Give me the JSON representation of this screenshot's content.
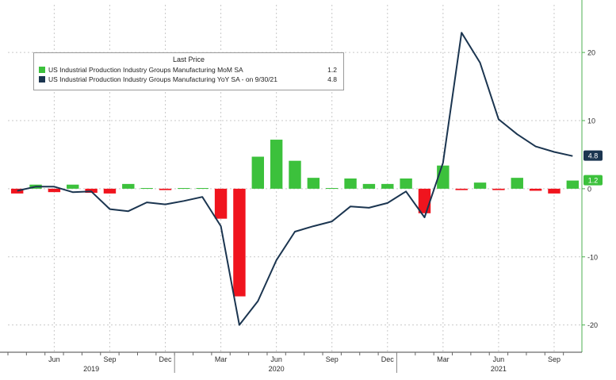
{
  "colors": {
    "pos_bar": "#3cc13c",
    "neg_bar": "#f0141e",
    "line": "#1b3550",
    "grid": "#c9c9c9",
    "axis": "#4caf50"
  },
  "legend": {
    "title": "Last Price",
    "items": [
      {
        "name": "US Industrial Production Industry Groups Manufacturing MoM SA",
        "value": "1.2",
        "color": "#3cc13c"
      },
      {
        "name": "US Industrial Production Industry Groups Manufacturing YoY SA -  on 9/30/21",
        "value": "4.8",
        "color": "#1b3550"
      }
    ]
  },
  "chart_data": {
    "type": "bar",
    "months": [
      "2019-04",
      "2019-05",
      "2019-06",
      "2019-07",
      "2019-08",
      "2019-09",
      "2019-10",
      "2019-11",
      "2019-12",
      "2020-01",
      "2020-02",
      "2020-03",
      "2020-04",
      "2020-05",
      "2020-06",
      "2020-07",
      "2020-08",
      "2020-09",
      "2020-10",
      "2020-11",
      "2020-12",
      "2021-01",
      "2021-02",
      "2021-03",
      "2021-04",
      "2021-05",
      "2021-06",
      "2021-07",
      "2021-08",
      "2021-09",
      "2021-10"
    ],
    "x_tick_labels": [
      {
        "label": "Jun",
        "month": "2019-06"
      },
      {
        "label": "Sep",
        "month": "2019-09"
      },
      {
        "label": "Dec",
        "month": "2019-12"
      },
      {
        "label": "Mar",
        "month": "2020-03"
      },
      {
        "label": "Jun",
        "month": "2020-06"
      },
      {
        "label": "Sep",
        "month": "2020-09"
      },
      {
        "label": "Dec",
        "month": "2020-12"
      },
      {
        "label": "Mar",
        "month": "2021-03"
      },
      {
        "label": "Jun",
        "month": "2021-06"
      },
      {
        "label": "Sep",
        "month": "2021-09"
      }
    ],
    "year_labels": [
      {
        "label": "2019",
        "month": "2019-08"
      },
      {
        "label": "2020",
        "month": "2020-06"
      },
      {
        "label": "2021",
        "month": "2021-06"
      }
    ],
    "y_ticks": [
      -20,
      -10,
      0,
      10,
      20
    ],
    "ylim": [
      -24,
      27
    ],
    "grid": true,
    "series": [
      {
        "name": "US Industrial Production Industry Groups Manufacturing MoM SA",
        "type": "bar",
        "values": [
          -0.7,
          0.6,
          -0.5,
          0.6,
          -0.6,
          -0.7,
          0.7,
          0.1,
          -0.2,
          0.1,
          0.1,
          -4.4,
          -15.8,
          4.7,
          7.2,
          4.1,
          1.6,
          0.1,
          1.5,
          0.7,
          0.7,
          1.5,
          -3.6,
          3.4,
          -0.2,
          0.9,
          -0.2,
          1.6,
          -0.3,
          -0.7,
          1.2
        ]
      },
      {
        "name": "US Industrial Production Industry Groups Manufacturing YoY SA -  on 9/30/21",
        "type": "line",
        "values": [
          -0.3,
          0.3,
          0.3,
          -0.5,
          -0.4,
          -3.0,
          -3.3,
          -2.0,
          -2.3,
          -1.8,
          -1.2,
          -5.5,
          -20.0,
          -16.5,
          -10.5,
          -6.3,
          -5.5,
          -4.8,
          -2.6,
          -2.8,
          -2.1,
          -0.4,
          -4.2,
          3.8,
          22.9,
          18.5,
          10.2,
          8.0,
          6.2,
          5.4,
          4.8
        ]
      }
    ],
    "last_value_labels": [
      {
        "value": "4.8",
        "series": 1
      },
      {
        "value": "1.2",
        "series": 0
      }
    ]
  }
}
